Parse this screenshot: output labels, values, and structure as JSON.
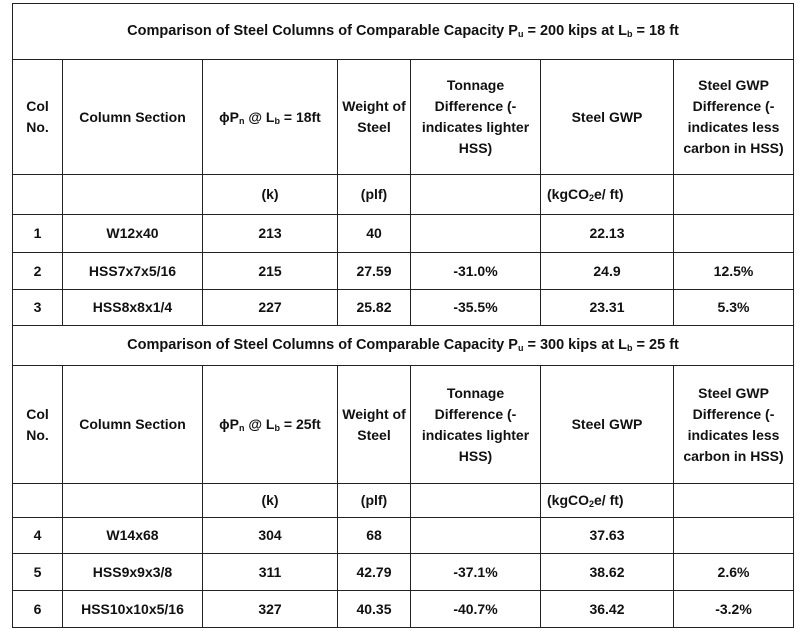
{
  "sections": [
    {
      "title": [
        "Comparison of Steel Columns of Comparable Capacity P",
        "u",
        " = 200 kips at L",
        "b",
        " = 18 ft"
      ],
      "header": [
        "Col No.",
        "Column Section",
        [
          "ϕP",
          "n",
          " @ L",
          "b",
          " = 18ft"
        ],
        "Weight of Steel",
        "Tonnage Difference (- indicates lighter HSS)",
        "Steel GWP",
        "Steel GWP Difference (- indicates less carbon in HSS)"
      ],
      "units": [
        null,
        null,
        "(k)",
        "(plf)",
        null,
        [
          "(kgCO",
          "2",
          "e/ ft)"
        ],
        null
      ],
      "rows": [
        [
          "1",
          "W12x40",
          "213",
          "40",
          null,
          "22.13",
          null
        ],
        [
          "2",
          "HSS7x7x5/16",
          "215",
          "27.59",
          "-31.0%",
          "24.9",
          "12.5%"
        ],
        [
          "3",
          "HSS8x8x1/4",
          "227",
          "25.82",
          "-35.5%",
          "23.31",
          "5.3%"
        ]
      ]
    },
    {
      "title": [
        "Comparison of Steel Columns of Comparable Capacity P",
        "u",
        " = 300 kips at L",
        "b",
        " = 25 ft"
      ],
      "header": [
        "Col No.",
        "Column Section",
        [
          "ϕP",
          "n",
          " @ L",
          "b",
          " = 25ft"
        ],
        "Weight of Steel",
        "Tonnage Difference (- indicates lighter HSS)",
        "Steel GWP",
        "Steel GWP Difference (- indicates less carbon in HSS)"
      ],
      "units": [
        null,
        null,
        "(k)",
        "(plf)",
        null,
        [
          "(kgCO",
          "2",
          "e/ ft)"
        ],
        null
      ],
      "rows": [
        [
          "4",
          "W14x68",
          "304",
          "68",
          null,
          "37.63",
          null
        ],
        [
          "5",
          "HSS9x9x3/8",
          "311",
          "42.79",
          "-37.1%",
          "38.62",
          "2.6%"
        ],
        [
          "6",
          "HSS10x10x5/16",
          "327",
          "40.35",
          "-40.7%",
          "36.42",
          "-3.2%"
        ]
      ]
    }
  ]
}
